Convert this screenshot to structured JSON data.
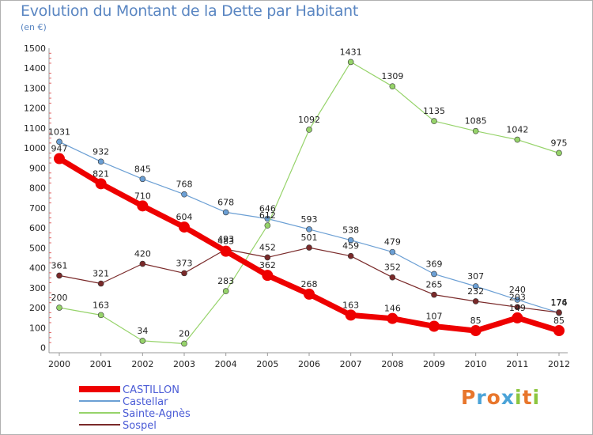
{
  "header": {
    "title": "Evolution du Montant de la Dette par Habitant",
    "subtitle": "(en €)"
  },
  "logo": {
    "text": "Proxiti",
    "letters": [
      "P",
      "r",
      "o",
      "x",
      "i",
      "t",
      "i"
    ],
    "colors": [
      "#e8762c",
      "#4aa3d8",
      "#e8762c",
      "#4aa3d8",
      "#8cc63f",
      "#e8762c",
      "#8cc63f"
    ]
  },
  "chart_data": {
    "type": "line",
    "title": "Evolution du Montant de la Dette par Habitant",
    "subtitle": "(en €)",
    "xlabel": "",
    "ylabel": "",
    "x": [
      "2000",
      "2001",
      "2002",
      "2003",
      "2004",
      "2005",
      "2006",
      "2007",
      "2008",
      "2009",
      "2010",
      "2011",
      "2012"
    ],
    "ylim": [
      0,
      1500
    ],
    "yticks": [
      0,
      100,
      200,
      300,
      400,
      500,
      600,
      700,
      800,
      900,
      1000,
      1100,
      1200,
      1300,
      1400,
      1500
    ],
    "grid": false,
    "legend": "bottom-left",
    "series": [
      {
        "name": "CASTILLON",
        "color": "#ee0000",
        "width": 7,
        "marker": 7,
        "values": [
          947,
          821,
          710,
          604,
          483,
          362,
          268,
          163,
          146,
          107,
          85,
          149,
          85
        ]
      },
      {
        "name": "Castellar",
        "color": "#6b9fd4",
        "width": 1.2,
        "marker": 3.5,
        "values": [
          1031,
          932,
          845,
          768,
          678,
          646,
          593,
          538,
          479,
          369,
          307,
          240,
          174
        ]
      },
      {
        "name": "Sainte-Agnès",
        "color": "#96d36a",
        "width": 1.2,
        "marker": 3.5,
        "values": [
          200,
          163,
          34,
          20,
          283,
          612,
          1092,
          1431,
          1309,
          1135,
          1085,
          1042,
          975
        ]
      },
      {
        "name": "Sospel",
        "color": "#7a2a2a",
        "width": 1.2,
        "marker": 3.5,
        "values": [
          361,
          321,
          420,
          373,
          493,
          452,
          501,
          459,
          352,
          265,
          232,
          203,
          176
        ]
      }
    ]
  }
}
